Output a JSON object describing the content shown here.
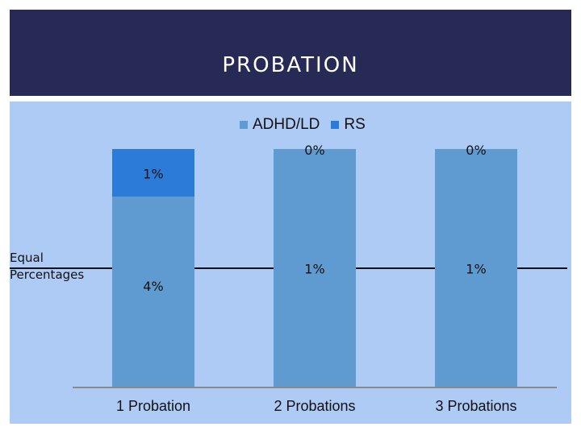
{
  "slide": {
    "title": "PROBATION",
    "reference_label_line1": "Equal",
    "reference_label_line2": "Percentages"
  },
  "colors": {
    "header": "#262a54",
    "chart_bg": "#aecbf6",
    "adhd_ld": "#5f9bd1",
    "rs": "#2d7bd8"
  },
  "chart_data": {
    "type": "bar",
    "stacked": true,
    "percent_stacked": true,
    "categories": [
      "1 Probation",
      "2 Probations",
      "3 Probations"
    ],
    "series": [
      {
        "name": "ADHD/LD",
        "values": [
          4,
          1,
          1
        ],
        "labels": [
          "4%",
          "1%",
          "1%"
        ],
        "color": "#5f9bd1"
      },
      {
        "name": "RS",
        "values": [
          1,
          0,
          0
        ],
        "labels": [
          "1%",
          "0%",
          "0%"
        ],
        "color": "#2d7bd8"
      }
    ],
    "legend_position": "top-center",
    "reference_line": {
      "label": "Equal Percentages",
      "value": 0.5
    },
    "gridlines": false
  }
}
